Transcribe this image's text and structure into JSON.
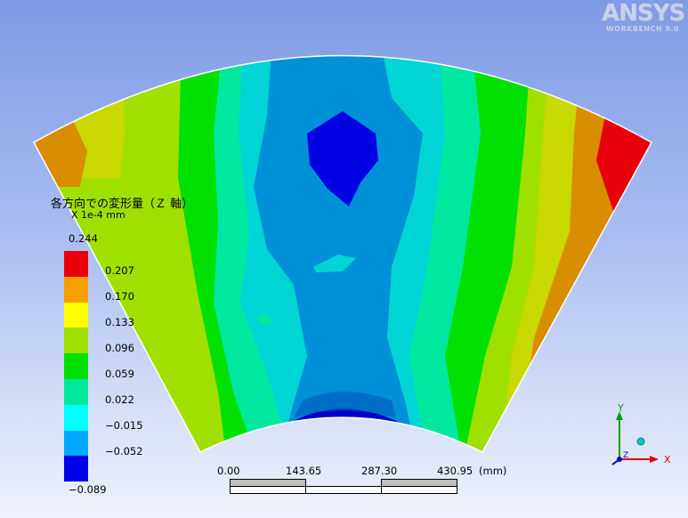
{
  "logo": {
    "brand": "ANSYS",
    "subtitle": "WORKBENCH 9.0"
  },
  "legend": {
    "title": "各方向での変形量（Ｚ 軸）",
    "unit": "X 1e-4 mm",
    "ticks": [
      "0.244",
      "0.207",
      "0.170",
      "0.133",
      "0.096",
      "0.059",
      "0.022",
      "−0.015",
      "−0.052",
      "−0.089"
    ],
    "colors": [
      "#e8000b",
      "#f5a000",
      "#ffff00",
      "#a0e000",
      "#00e000",
      "#00e8a0",
      "#00ffff",
      "#00a8ff",
      "#0000e8"
    ]
  },
  "scale": {
    "labels": [
      "0.00",
      "143.65",
      "287.30",
      "430.95"
    ],
    "unit": "(mm)"
  },
  "triad": {
    "x_label": "X",
    "y_label": "Y",
    "z_label": "Z"
  }
}
